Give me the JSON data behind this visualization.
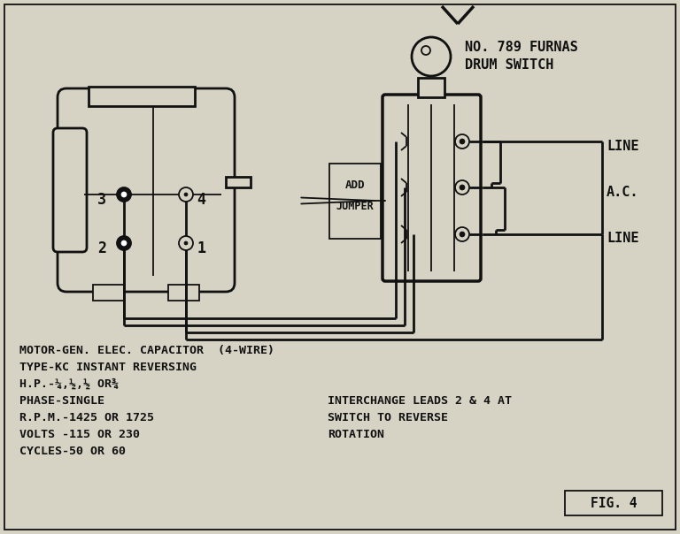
{
  "bg_color": "#c8c4b4",
  "line_color": "#111111",
  "fig_width": 7.68,
  "fig_height": 6.04,
  "drum_label_1": "NO. 789 FURNAS",
  "drum_label_2": "DRUM SWITCH",
  "fig_label": "FIG. 4",
  "info_left": [
    "MOTOR-GEN. ELEC. CAPACITOR  (4-WIRE)",
    "TYPE-KC INSTANT REVERSING",
    "H.P.-1/4,1/2,1/2 OR3/4",
    "PHASE-SINGLE",
    "R.P.M.-1425 OR 1725",
    "VOLTS -115 OR 230",
    "CYCLES-50 OR 60"
  ],
  "info_right": [
    "INTERCHANGE LEADS 2 & 4 AT",
    "SWITCH TO REVERSE",
    "ROTATION"
  ]
}
